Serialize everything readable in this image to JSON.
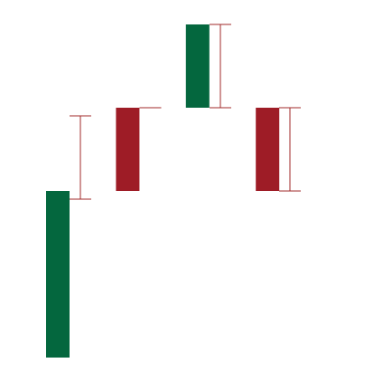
{
  "colors": {
    "up": "#04673e",
    "down": "#9e1c26",
    "error": "#a12a2a"
  },
  "chart_data": {
    "type": "bar",
    "subtype": "waterfall",
    "title": "",
    "xlabel": "",
    "ylabel": "",
    "axes_visible": false,
    "grid": false,
    "legend": "none",
    "ylim": [
      0,
      4.3
    ],
    "steps": [
      {
        "base": 0,
        "end": 2,
        "direction": "up",
        "error_low": 1.9,
        "error_high": 2.9
      },
      {
        "base": 3,
        "end": 2,
        "direction": "down",
        "error_low": 3,
        "error_high": 3
      },
      {
        "base": 3,
        "end": 4,
        "direction": "up",
        "error_low": 3,
        "error_high": 4
      },
      {
        "base": 3,
        "end": 2,
        "direction": "down",
        "error_low": 2,
        "error_high": 3
      }
    ]
  }
}
